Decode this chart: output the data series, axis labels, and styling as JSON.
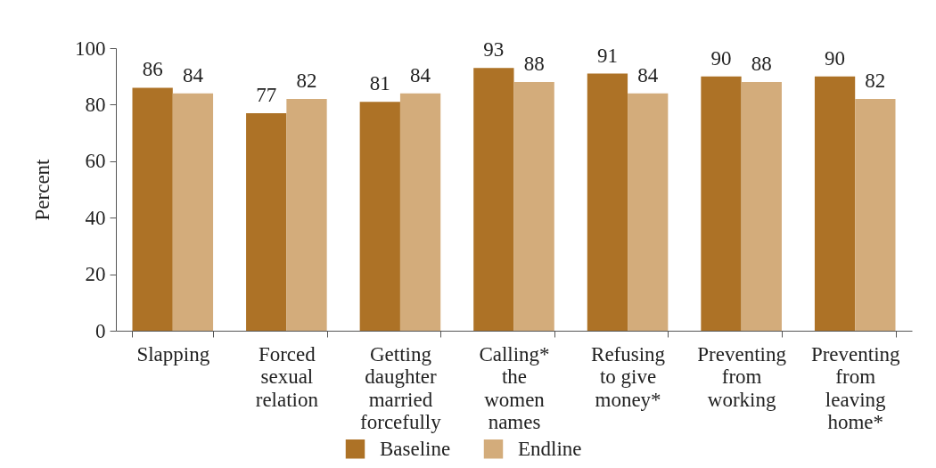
{
  "chart_data": {
    "type": "bar",
    "ylabel": "Percent",
    "categories": [
      "Slapping",
      "Forced\nsexual\nrelation",
      "Getting\ndaughter\nmarried\nforcefully",
      "Calling*\nthe\nwomen\nnames",
      "Refusing\nto give\nmoney*",
      "Preventing\nfrom\nworking",
      "Preventing\nfrom\nleaving\nhome*"
    ],
    "series": [
      {
        "name": "Baseline",
        "color": "#ad7226",
        "values": [
          86,
          77,
          81,
          93,
          91,
          90,
          90
        ]
      },
      {
        "name": "Endline",
        "color": "#d3ac7b",
        "values": [
          84,
          82,
          84,
          88,
          84,
          88,
          82
        ]
      }
    ],
    "ylim": [
      0,
      100
    ],
    "yticks": [
      0,
      20,
      40,
      60,
      80,
      100
    ],
    "grid": false,
    "data_labels": true,
    "legend": "bottom"
  }
}
